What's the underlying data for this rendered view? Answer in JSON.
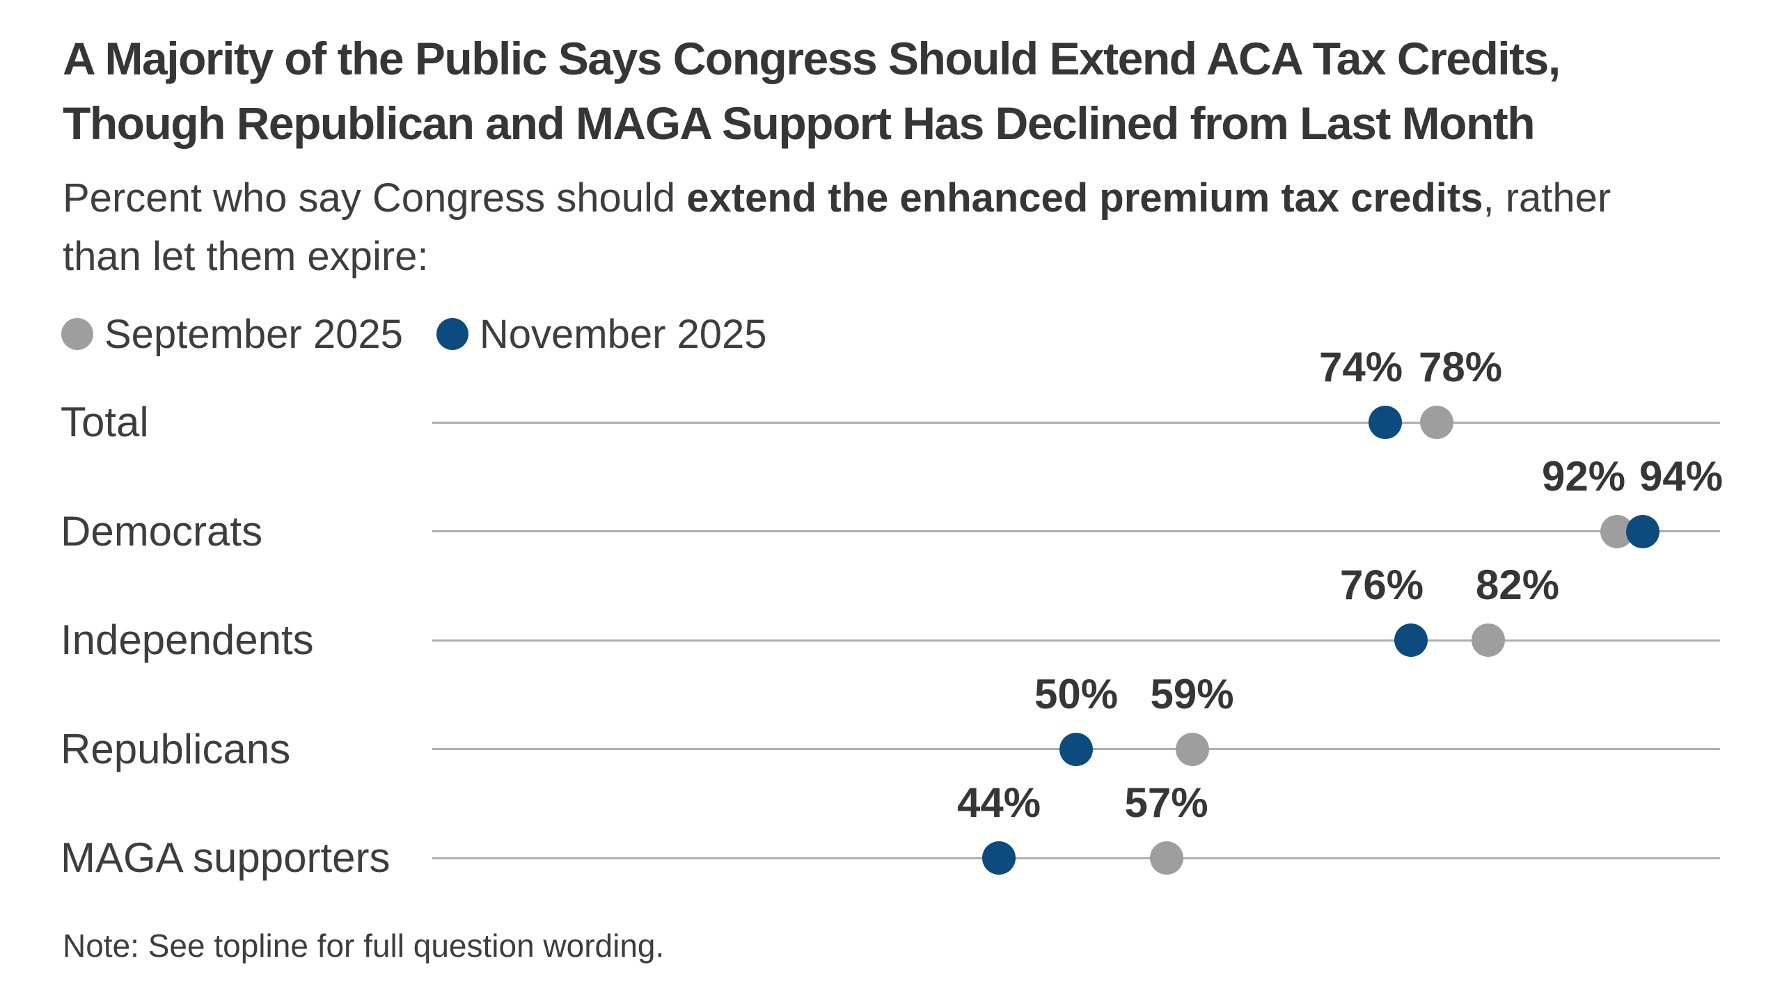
{
  "title": {
    "line1": "A Majority of the Public Says Congress Should Extend ACA Tax Credits,",
    "line2": "Though Republican and MAGA Support Has Declined from Last Month"
  },
  "subtitle": {
    "line1": {
      "pre": "Percent who say Congress should ",
      "bold": "extend the enhanced premium tax credits",
      "post": ", rather"
    },
    "line2": "than let them expire:"
  },
  "legend": [
    {
      "label": "September 2025",
      "color": "#9e9e9e"
    },
    {
      "label": "November 2025",
      "color": "#0d4a7d"
    }
  ],
  "note": "Note: See topline for full question wording.",
  "colors": {
    "september": "#9e9e9e",
    "november": "#0d4a7d",
    "row_line": "#aeaeae",
    "text": "#363636",
    "background": "#ffffff"
  },
  "chart_data": {
    "type": "scatter",
    "variant": "dumbbell-dot-plot",
    "title": "Percent who say Congress should extend the enhanced premium tax credits, rather than let them expire",
    "xlabel": "",
    "ylabel": "",
    "xlim": [
      0,
      100
    ],
    "grid": false,
    "legend_position": "top-left",
    "value_suffix": "%",
    "categories": [
      "Total",
      "Democrats",
      "Independents",
      "Republicans",
      "MAGA supporters"
    ],
    "series": [
      {
        "name": "September 2025",
        "key": "september",
        "color": "#9e9e9e",
        "values": [
          78,
          92,
          82,
          59,
          57
        ],
        "label_dx": [
          34,
          -48,
          42,
          0,
          0
        ]
      },
      {
        "name": "November 2025",
        "key": "november",
        "color": "#0d4a7d",
        "values": [
          74,
          94,
          76,
          50,
          44
        ],
        "label_dx": [
          -35,
          55,
          -42,
          0,
          0
        ]
      }
    ]
  }
}
